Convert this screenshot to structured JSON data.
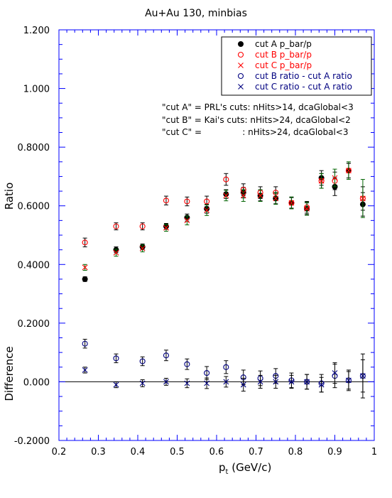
{
  "chart_data": {
    "type": "scatter",
    "title": "Au+Au 130, minbias",
    "xlabel": "p",
    "xlabel_sub": "t",
    "xlabel_unit": " (GeV/c)",
    "ylabel_top": "Ratio",
    "ylabel_bottom": "Difference",
    "xlim": [
      0.2,
      1.0
    ],
    "ylim": [
      -0.2,
      1.2
    ],
    "x_ticks": [
      0.2,
      0.3,
      0.4,
      0.5,
      0.6,
      0.7,
      0.8,
      0.9,
      1.0
    ],
    "x_tick_labels": [
      "0.2",
      "0.3",
      "0.4",
      "0.5",
      "0.6",
      "0.7",
      "0.8",
      "0.9",
      "1"
    ],
    "y_ticks": [
      -0.2,
      0.0,
      0.2,
      0.4,
      0.6,
      0.8,
      1.0,
      1.2
    ],
    "y_tick_labels": [
      "-0.2000",
      "0.000",
      "0.2000",
      "0.4000",
      "0.6000",
      "0.8000",
      "1.000",
      "1.200"
    ],
    "zero_line": 0.0,
    "grid": false,
    "legend_position": "top-right",
    "notes": [
      "\"cut A\" = PRL's cuts: nHits>14, dcaGlobal<3",
      "\"cut B\" = Kai's cuts: nHits>24, dcaGlobal<2",
      "\"cut C\" =               : nHits>24, dcaGlobal<3"
    ],
    "series": [
      {
        "name": "cut A p_bar/p",
        "marker": "filled-circle",
        "color": "#000000",
        "err_color": "#000000",
        "x": [
          0.266,
          0.345,
          0.412,
          0.472,
          0.525,
          0.575,
          0.624,
          0.668,
          0.711,
          0.75,
          0.79,
          0.829,
          0.866,
          0.9,
          0.935,
          0.971
        ],
        "y": [
          0.35,
          0.45,
          0.46,
          0.53,
          0.56,
          0.59,
          0.64,
          0.645,
          0.635,
          0.625,
          0.61,
          0.59,
          0.695,
          0.665,
          0.72,
          0.605
        ],
        "err": [
          0.008,
          0.01,
          0.01,
          0.01,
          0.012,
          0.015,
          0.015,
          0.018,
          0.018,
          0.018,
          0.018,
          0.02,
          0.025,
          0.03,
          0.025,
          0.04
        ]
      },
      {
        "name": "cut B p_bar/p",
        "marker": "open-circle",
        "color": "#ff0000",
        "err_color": "#000000",
        "x": [
          0.266,
          0.345,
          0.412,
          0.472,
          0.525,
          0.575,
          0.624,
          0.668,
          0.711,
          0.75,
          0.79,
          0.829,
          0.866,
          0.9,
          0.935,
          0.971
        ],
        "y": [
          0.475,
          0.53,
          0.53,
          0.618,
          0.615,
          0.615,
          0.69,
          0.655,
          0.645,
          0.645,
          0.61,
          0.595,
          0.685,
          0.685,
          0.72,
          0.625
        ],
        "err": [
          0.015,
          0.012,
          0.012,
          0.015,
          0.015,
          0.018,
          0.02,
          0.02,
          0.02,
          0.02,
          0.02,
          0.02,
          0.025,
          0.03,
          0.025,
          0.04
        ]
      },
      {
        "name": "cut C p_bar/p",
        "marker": "x",
        "color": "#ff0000",
        "err_color": "#006400",
        "x": [
          0.266,
          0.345,
          0.412,
          0.472,
          0.525,
          0.575,
          0.624,
          0.668,
          0.711,
          0.75,
          0.79,
          0.829,
          0.866,
          0.9,
          0.935,
          0.971
        ],
        "y": [
          0.39,
          0.44,
          0.455,
          0.525,
          0.55,
          0.585,
          0.635,
          0.635,
          0.635,
          0.625,
          0.61,
          0.59,
          0.685,
          0.695,
          0.72,
          0.625
        ],
        "err": [
          0.01,
          0.012,
          0.012,
          0.012,
          0.015,
          0.018,
          0.018,
          0.02,
          0.02,
          0.02,
          0.02,
          0.022,
          0.025,
          0.03,
          0.03,
          0.065
        ]
      },
      {
        "name": "cut B ratio - cut A ratio",
        "marker": "open-circle",
        "color": "#000080",
        "err_color": "#000000",
        "x": [
          0.266,
          0.345,
          0.412,
          0.472,
          0.525,
          0.575,
          0.624,
          0.668,
          0.711,
          0.75,
          0.79,
          0.829,
          0.866,
          0.9,
          0.935,
          0.971
        ],
        "y": [
          0.13,
          0.08,
          0.07,
          0.09,
          0.06,
          0.03,
          0.05,
          0.015,
          0.012,
          0.02,
          0.005,
          0.0,
          -0.005,
          0.02,
          0.005,
          0.02
        ],
        "err": [
          0.015,
          0.015,
          0.015,
          0.018,
          0.018,
          0.022,
          0.022,
          0.025,
          0.025,
          0.025,
          0.025,
          0.025,
          0.03,
          0.04,
          0.035,
          0.075
        ]
      },
      {
        "name": "cut C ratio - cut A ratio",
        "marker": "x",
        "color": "#000080",
        "err_color": "#000000",
        "x": [
          0.266,
          0.345,
          0.412,
          0.472,
          0.525,
          0.575,
          0.624,
          0.668,
          0.711,
          0.75,
          0.79,
          0.829,
          0.866,
          0.9,
          0.935,
          0.971
        ],
        "y": [
          0.04,
          -0.01,
          -0.005,
          0.0,
          -0.005,
          -0.005,
          0.0,
          -0.01,
          0.0,
          0.0,
          0.0,
          0.0,
          -0.01,
          0.03,
          0.005,
          0.02
        ],
        "err": [
          0.01,
          0.01,
          0.012,
          0.012,
          0.015,
          0.018,
          0.018,
          0.022,
          0.022,
          0.022,
          0.022,
          0.025,
          0.025,
          0.035,
          0.03,
          0.055
        ]
      }
    ]
  }
}
